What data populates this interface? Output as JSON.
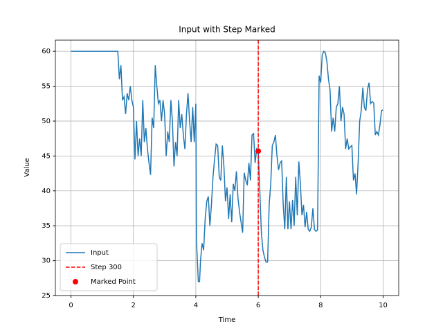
{
  "chart_data": {
    "type": "line",
    "title": "Input with Step Marked",
    "x_label": "Time",
    "y_label": "Value",
    "xlim": [
      -0.5,
      10.5
    ],
    "ylim": [
      25,
      61.6
    ],
    "xticks": [
      0,
      2,
      4,
      6,
      8,
      10
    ],
    "yticks": [
      25,
      30,
      35,
      40,
      45,
      50,
      55,
      60
    ],
    "grid": true,
    "legend": "lower left",
    "series": [
      {
        "name": "Input",
        "color": "#1f77b4",
        "x": [
          0,
          1.5,
          1.55,
          1.6,
          1.65,
          1.7,
          1.75,
          1.8,
          1.85,
          1.9,
          1.95,
          2.0,
          2.05,
          2.1,
          2.15,
          2.2,
          2.25,
          2.3,
          2.35,
          2.4,
          2.45,
          2.5,
          2.55,
          2.6,
          2.65,
          2.7,
          2.75,
          2.8,
          2.85,
          2.9,
          2.95,
          3.0,
          3.05,
          3.1,
          3.15,
          3.2,
          3.25,
          3.3,
          3.35,
          3.4,
          3.45,
          3.5,
          3.55,
          3.6,
          3.65,
          3.7,
          3.75,
          3.8,
          3.85,
          3.9,
          3.95,
          4.0,
          4.02,
          4.08,
          4.12,
          4.15,
          4.2,
          4.25,
          4.3,
          4.35,
          4.4,
          4.45,
          4.5,
          4.55,
          4.6,
          4.65,
          4.7,
          4.75,
          4.8,
          4.85,
          4.9,
          4.95,
          5.0,
          5.05,
          5.1,
          5.15,
          5.2,
          5.25,
          5.3,
          5.35,
          5.4,
          5.45,
          5.5,
          5.55,
          5.6,
          5.65,
          5.7,
          5.75,
          5.8,
          5.85,
          5.9,
          5.95,
          6.0,
          6.05,
          6.1,
          6.15,
          6.2,
          6.25,
          6.3,
          6.35,
          6.4,
          6.45,
          6.5,
          6.55,
          6.6,
          6.65,
          6.7,
          6.75,
          6.8,
          6.85,
          6.9,
          6.95,
          7.0,
          7.05,
          7.1,
          7.15,
          7.2,
          7.25,
          7.3,
          7.35,
          7.4,
          7.45,
          7.5,
          7.55,
          7.6,
          7.65,
          7.7,
          7.75,
          7.8,
          7.85,
          7.9,
          7.95,
          8.0,
          8.05,
          8.1,
          8.15,
          8.2,
          8.25,
          8.3,
          8.35,
          8.4,
          8.45,
          8.5,
          8.55,
          8.6,
          8.65,
          8.7,
          8.75,
          8.8,
          8.85,
          8.9,
          8.95,
          9.0,
          9.05,
          9.1,
          9.15,
          9.2,
          9.25,
          9.3,
          9.35,
          9.4,
          9.45,
          9.5,
          9.55,
          9.6,
          9.65,
          9.7,
          9.75,
          9.8,
          9.85,
          9.9,
          9.95,
          10.0
        ],
        "values": [
          60,
          60,
          56,
          58,
          53,
          53.5,
          51,
          54,
          53,
          55,
          53,
          52,
          44.5,
          50,
          45,
          47.5,
          45,
          53,
          47,
          49,
          46,
          44,
          42.3,
          50.5,
          49,
          58,
          55,
          52.5,
          53,
          50,
          53,
          51,
          45,
          48.5,
          47,
          53,
          50,
          43.5,
          47,
          45,
          53,
          49,
          51,
          48,
          46,
          51,
          54,
          50,
          47,
          52,
          47,
          52.5,
          33,
          27,
          27,
          30,
          32.5,
          31.5,
          36,
          38.5,
          39.2,
          35,
          38,
          42,
          44.5,
          46.7,
          46.5,
          42,
          41.5,
          46.5,
          43.5,
          38.5,
          40.5,
          36,
          39.5,
          35.5,
          41,
          40,
          42.8,
          39,
          37,
          35.5,
          34,
          42.6,
          41.5,
          40.8,
          44,
          41.5,
          48,
          48.2,
          44,
          46,
          45.7,
          40,
          34,
          31.5,
          30.5,
          29.8,
          29.8,
          38,
          41,
          46.5,
          47,
          48,
          45,
          43,
          44,
          44.3,
          38,
          34.5,
          42,
          34.5,
          38.5,
          34.5,
          38.7,
          35,
          42,
          36.5,
          44.2,
          41,
          36.5,
          38,
          34.8,
          37,
          34.5,
          34.2,
          34.8,
          37.5,
          34.5,
          34.2,
          34.4,
          56.5,
          55.5,
          59.5,
          60,
          59.8,
          58.5,
          56,
          54.5,
          48.5,
          50.5,
          48.5,
          52,
          52.5,
          55,
          50,
          52,
          51,
          46,
          47.5,
          46,
          46.3,
          46.5,
          41.5,
          42.5,
          39.5,
          44,
          50,
          51.5,
          54.8,
          52,
          51.5,
          54.5,
          55.5,
          52.5,
          52.8,
          52.6,
          48,
          48.5,
          48,
          49.5,
          51.5,
          51.6
        ]
      }
    ],
    "vline": {
      "name": "Step 300",
      "x": 6,
      "color": "#ff0000"
    },
    "marker": {
      "name": "Marked Point",
      "x": 6,
      "y": 45.7,
      "color": "#ff0000"
    }
  }
}
